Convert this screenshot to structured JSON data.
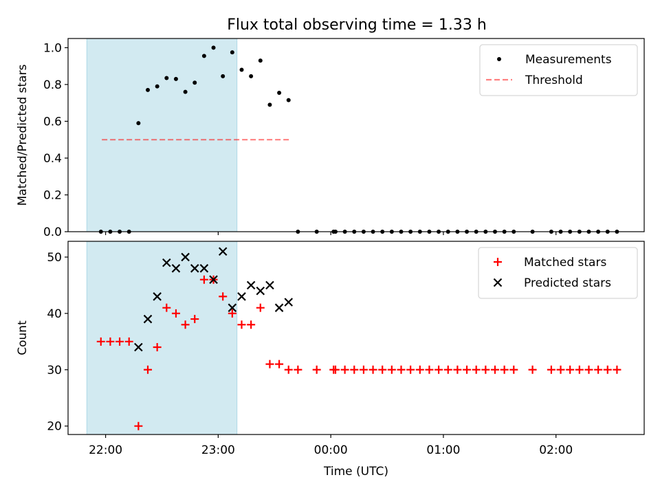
{
  "title": "Flux total observing time = 1.33 h",
  "colors": {
    "shade": "#add8e6",
    "threshold": "#ff0000",
    "measurements": "#000000",
    "matched": "#ff0000",
    "predicted": "#000000"
  },
  "chart_data": [
    {
      "type": "scatter",
      "panel": "top",
      "ylabel": "Matched/Predicted stars",
      "xlim": [
        "21:40",
        "02:47"
      ],
      "ylim": [
        0,
        1.05
      ],
      "yticks": [
        "0.0",
        "0.2",
        "0.4",
        "0.6",
        "0.8",
        "1.0"
      ],
      "legend": {
        "position": "upper right",
        "entries": [
          "Measurements",
          "Threshold"
        ]
      },
      "shaded_interval": [
        "21:50",
        "23:10"
      ],
      "threshold": {
        "name": "Threshold",
        "y": 0.5,
        "x_range": [
          "21:58",
          "23:38"
        ]
      },
      "series": [
        {
          "name": "Measurements",
          "marker": "dot",
          "points": [
            [
              "21:57:30",
              0.0
            ],
            [
              "22:02:30",
              0.0
            ],
            [
              "22:07:30",
              0.0
            ],
            [
              "22:12:30",
              0.0
            ],
            [
              "22:17:30",
              0.59
            ],
            [
              "22:22:30",
              0.77
            ],
            [
              "22:27:30",
              0.79
            ],
            [
              "22:32:30",
              0.835
            ],
            [
              "22:37:30",
              0.83
            ],
            [
              "22:42:30",
              0.76
            ],
            [
              "22:47:30",
              0.81
            ],
            [
              "22:52:30",
              0.955
            ],
            [
              "22:57:30",
              1.0
            ],
            [
              "23:02:30",
              0.845
            ],
            [
              "23:07:30",
              0.975
            ],
            [
              "23:12:30",
              0.88
            ],
            [
              "23:17:30",
              0.845
            ],
            [
              "23:22:30",
              0.93
            ],
            [
              "23:27:30",
              0.69
            ],
            [
              "23:32:30",
              0.755
            ],
            [
              "23:37:30",
              0.715
            ],
            [
              "23:42:30",
              0.0
            ],
            [
              "23:52:30",
              0.0
            ],
            [
              "00:01:30",
              0.0
            ],
            [
              "00:02:30",
              0.0
            ],
            [
              "00:07:30",
              0.0
            ],
            [
              "00:12:30",
              0.0
            ],
            [
              "00:17:30",
              0.0
            ],
            [
              "00:22:30",
              0.0
            ],
            [
              "00:27:30",
              0.0
            ],
            [
              "00:32:30",
              0.0
            ],
            [
              "00:37:30",
              0.0
            ],
            [
              "00:42:30",
              0.0
            ],
            [
              "00:47:30",
              0.0
            ],
            [
              "00:52:30",
              0.0
            ],
            [
              "00:57:30",
              0.0
            ],
            [
              "01:02:30",
              0.0
            ],
            [
              "01:07:30",
              0.0
            ],
            [
              "01:12:30",
              0.0
            ],
            [
              "01:17:30",
              0.0
            ],
            [
              "01:22:30",
              0.0
            ],
            [
              "01:27:30",
              0.0
            ],
            [
              "01:32:30",
              0.0
            ],
            [
              "01:37:30",
              0.0
            ],
            [
              "01:47:30",
              0.0
            ],
            [
              "01:57:30",
              0.0
            ],
            [
              "02:02:30",
              0.0
            ],
            [
              "02:07:30",
              0.0
            ],
            [
              "02:12:30",
              0.0
            ],
            [
              "02:17:30",
              0.0
            ],
            [
              "02:22:30",
              0.0
            ],
            [
              "02:27:30",
              0.0
            ],
            [
              "02:32:30",
              0.0
            ]
          ]
        }
      ]
    },
    {
      "type": "scatter",
      "panel": "bottom",
      "xlabel": "Time (UTC)",
      "ylabel": "Count",
      "xlim": [
        "21:40",
        "02:47"
      ],
      "ylim": [
        18.5,
        52.8
      ],
      "xticks": [
        "22:00",
        "23:00",
        "00:00",
        "01:00",
        "02:00"
      ],
      "yticks": [
        "20",
        "30",
        "40",
        "50"
      ],
      "legend": {
        "position": "upper right",
        "entries": [
          "Matched stars",
          "Predicted stars"
        ]
      },
      "shaded_interval": [
        "21:50",
        "23:10"
      ],
      "series": [
        {
          "name": "Matched stars",
          "marker": "plus",
          "points": [
            [
              "21:57:30",
              35
            ],
            [
              "22:02:30",
              35
            ],
            [
              "22:07:30",
              35
            ],
            [
              "22:12:30",
              35
            ],
            [
              "22:17:30",
              20
            ],
            [
              "22:22:30",
              30
            ],
            [
              "22:27:30",
              34
            ],
            [
              "22:32:30",
              41
            ],
            [
              "22:37:30",
              40
            ],
            [
              "22:42:30",
              38
            ],
            [
              "22:47:30",
              39
            ],
            [
              "22:52:30",
              46
            ],
            [
              "22:57:30",
              46
            ],
            [
              "23:02:30",
              43
            ],
            [
              "23:07:30",
              40
            ],
            [
              "23:12:30",
              38
            ],
            [
              "23:17:30",
              38
            ],
            [
              "23:22:30",
              41
            ],
            [
              "23:27:30",
              31
            ],
            [
              "23:32:30",
              31
            ],
            [
              "23:37:30",
              30
            ],
            [
              "23:42:30",
              30
            ],
            [
              "23:52:30",
              30
            ],
            [
              "00:01:30",
              30
            ],
            [
              "00:02:30",
              30
            ],
            [
              "00:07:30",
              30
            ],
            [
              "00:12:30",
              30
            ],
            [
              "00:17:30",
              30
            ],
            [
              "00:22:30",
              30
            ],
            [
              "00:27:30",
              30
            ],
            [
              "00:32:30",
              30
            ],
            [
              "00:37:30",
              30
            ],
            [
              "00:42:30",
              30
            ],
            [
              "00:47:30",
              30
            ],
            [
              "00:52:30",
              30
            ],
            [
              "00:57:30",
              30
            ],
            [
              "01:02:30",
              30
            ],
            [
              "01:07:30",
              30
            ],
            [
              "01:12:30",
              30
            ],
            [
              "01:17:30",
              30
            ],
            [
              "01:22:30",
              30
            ],
            [
              "01:27:30",
              30
            ],
            [
              "01:32:30",
              30
            ],
            [
              "01:37:30",
              30
            ],
            [
              "01:47:30",
              30
            ],
            [
              "01:57:30",
              30
            ],
            [
              "02:02:30",
              30
            ],
            [
              "02:07:30",
              30
            ],
            [
              "02:12:30",
              30
            ],
            [
              "02:17:30",
              30
            ],
            [
              "02:22:30",
              30
            ],
            [
              "02:27:30",
              30
            ],
            [
              "02:32:30",
              30
            ]
          ]
        },
        {
          "name": "Predicted stars",
          "marker": "x",
          "points": [
            [
              "22:17:30",
              34
            ],
            [
              "22:22:30",
              39
            ],
            [
              "22:27:30",
              43
            ],
            [
              "22:32:30",
              49
            ],
            [
              "22:37:30",
              48
            ],
            [
              "22:42:30",
              50
            ],
            [
              "22:47:30",
              48
            ],
            [
              "22:52:30",
              48
            ],
            [
              "22:57:30",
              46
            ],
            [
              "23:02:30",
              51
            ],
            [
              "23:07:30",
              41
            ],
            [
              "23:12:30",
              43
            ],
            [
              "23:17:30",
              45
            ],
            [
              "23:22:30",
              44
            ],
            [
              "23:27:30",
              45
            ],
            [
              "23:32:30",
              41
            ],
            [
              "23:37:30",
              42
            ]
          ]
        }
      ]
    }
  ]
}
